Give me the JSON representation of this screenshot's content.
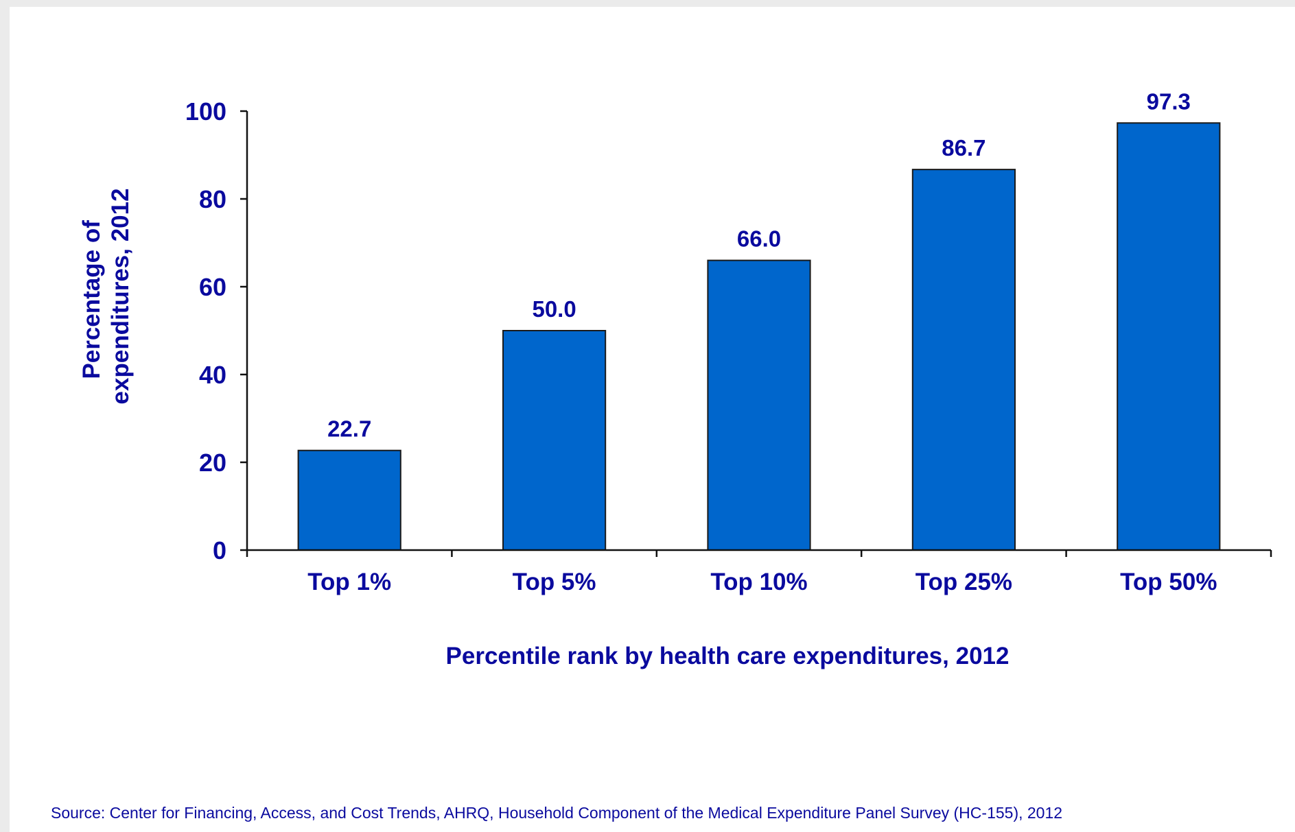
{
  "chart_data": {
    "type": "bar",
    "categories": [
      "Top 1%",
      "Top 5%",
      "Top 10%",
      "Top 25%",
      "Top 50%"
    ],
    "values": [
      22.7,
      50.0,
      66.0,
      86.7,
      97.3
    ],
    "data_labels": [
      "22.7",
      "50.0",
      "66.0",
      "86.7",
      "97.3"
    ],
    "xlabel": "Percentile rank by health care expenditures, 2012",
    "ylabel_lines": [
      "Percentage of",
      "expenditures, 2012"
    ],
    "ylim": [
      0,
      100
    ],
    "yticks": [
      0,
      20,
      40,
      60,
      80,
      100
    ],
    "grid": false,
    "legend": "none",
    "bar_color": "#0066cc",
    "text_color": "#0a0a9e"
  },
  "source_note": "Source: Center for Financing, Access, and Cost Trends, AHRQ, Household Component of the Medical Expenditure Panel Survey (HC-155), 2012"
}
